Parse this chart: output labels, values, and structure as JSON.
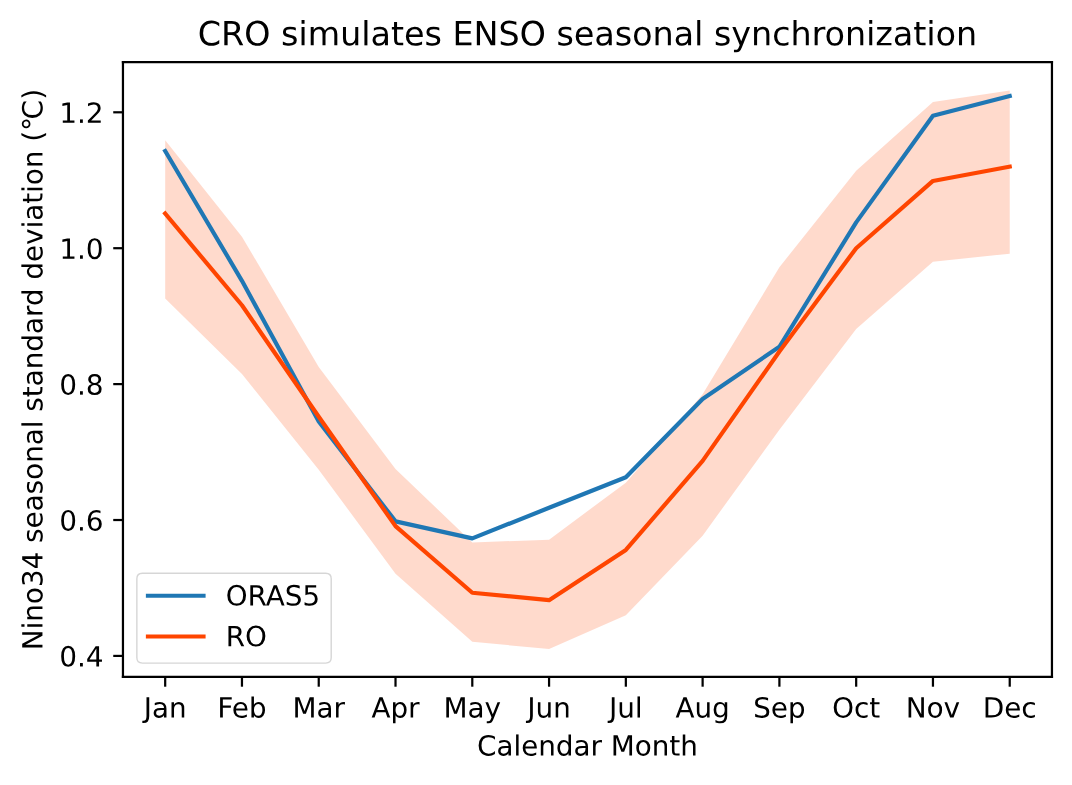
{
  "chart_data": {
    "type": "line",
    "title": "CRO simulates ENSO seasonal synchronization",
    "xlabel": "Calendar Month",
    "ylabel": "Nino34 seasonal standard deviation (℃)",
    "categories": [
      "Jan",
      "Feb",
      "Mar",
      "Apr",
      "May",
      "Jun",
      "Jul",
      "Aug",
      "Sep",
      "Oct",
      "Nov",
      "Dec"
    ],
    "series": [
      {
        "name": "ORAS5",
        "color": "#1f77b4",
        "values": [
          1.143,
          0.952,
          0.745,
          0.598,
          0.573,
          0.618,
          0.663,
          0.778,
          0.855,
          1.038,
          1.195,
          1.224
        ]
      },
      {
        "name": "RO",
        "color": "#ff4500",
        "values": [
          1.051,
          0.916,
          0.752,
          0.591,
          0.493,
          0.482,
          0.556,
          0.687,
          0.848,
          1.0,
          1.099,
          1.12
        ],
        "lower": [
          0.926,
          0.815,
          0.674,
          0.521,
          0.421,
          0.41,
          0.46,
          0.577,
          0.733,
          0.881,
          0.98,
          0.992
        ],
        "upper": [
          1.159,
          1.017,
          0.825,
          0.675,
          0.567,
          0.571,
          0.655,
          0.785,
          0.972,
          1.114,
          1.215,
          1.232
        ]
      }
    ],
    "ylim": [
      0.369,
      1.274
    ],
    "yticks": [
      0.4,
      0.6,
      0.8,
      {
        "value": 1.0,
        "label": "1.0"
      },
      1.2
    ],
    "legend": "bottom left",
    "line_style": "solid",
    "marker": "none",
    "grid": false
  }
}
